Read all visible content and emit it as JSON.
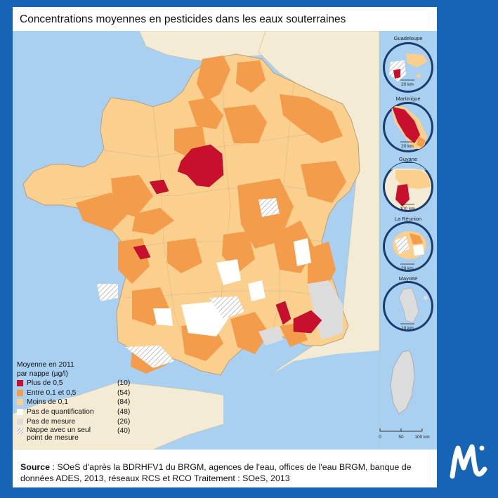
{
  "title": "Concentrations moyennes en pesticides dans les eaux souterraines",
  "colors": {
    "background": "#1565b4",
    "sea": "#a9d0f0",
    "neighbor_land": "#f4ebd5",
    "plus_05": "#c8102e",
    "entre_01_05": "#f39c4b",
    "moins_01": "#fbcf8e",
    "pas_quantification": "#ffffff",
    "pas_mesure": "#dcdcdc",
    "hatched": "#b0b0b0"
  },
  "legend": {
    "title_line1": "Moyenne en 2011",
    "title_line2": "par nappe (µg/l)",
    "items": [
      {
        "label": "Plus de 0,5",
        "count": "(10)"
      },
      {
        "label": "Entre 0,1 et 0,5",
        "count": "(54)"
      },
      {
        "label": "Moins de 0,1",
        "count": "(84)"
      },
      {
        "label": "Pas de quantification",
        "count": "(48)"
      },
      {
        "label": "Pas de mesure",
        "count": "(26)"
      },
      {
        "label_line1": "Nappe avec un seul",
        "label_line2": "point de mesure",
        "count": "(40)"
      }
    ]
  },
  "insets": [
    {
      "name": "Guadeloupe",
      "scale": "20 km"
    },
    {
      "name": "Martinique",
      "scale": "20 km"
    },
    {
      "name": "Guyane",
      "scale": "100 km"
    },
    {
      "name": "La Réunion",
      "scale": "20 km"
    },
    {
      "name": "Mayotte",
      "scale": "10 km"
    }
  ],
  "main_scale": {
    "ticks": [
      "0",
      "50",
      "100 km"
    ]
  },
  "source": {
    "label": "Source",
    "text": " : SOeS d'après la BDRHFV1 du BRGM, agences de l'eau, offices de l'eau BRGM, banque de données ADES, 2013, réseaux RCS et RCO Traitement : SOeS, 2013"
  },
  "logo": {
    "letter": "M"
  }
}
